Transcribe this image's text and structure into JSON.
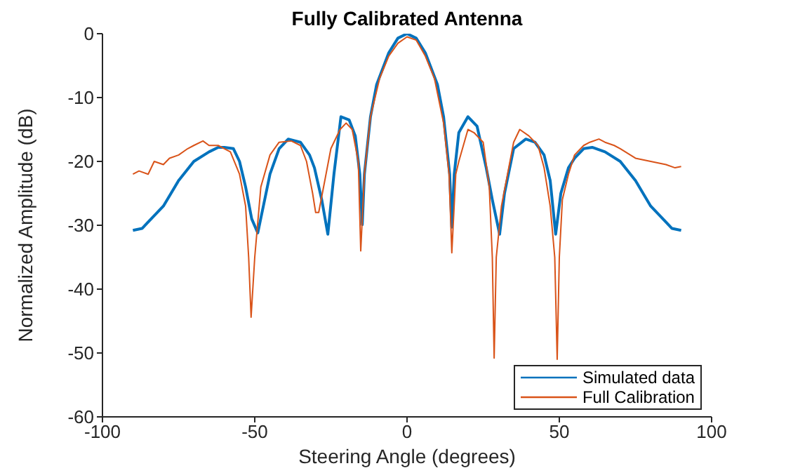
{
  "chart_data": {
    "type": "line",
    "title": "Fully Calibrated Antenna",
    "xlabel": "Steering Angle (degrees)",
    "ylabel": "Normalized Amplitude (dB)",
    "xlim": [
      -100,
      100
    ],
    "xticks": [
      -100,
      -50,
      0,
      50,
      100
    ],
    "ylim": [
      -60,
      0
    ],
    "yticks": [
      -60,
      -50,
      -40,
      -30,
      -20,
      -10,
      0
    ],
    "grid": false,
    "legend": "bottom right",
    "marker": "none",
    "line_style": "solid",
    "series": [
      {
        "name": "Simulated data",
        "color": "#0072bd",
        "x": [
          -90,
          -87,
          -85,
          -80,
          -75,
          -70,
          -65,
          -62,
          -60,
          -57,
          -55,
          -53,
          -51,
          -49,
          -45,
          -42,
          -39,
          -35,
          -32,
          -30.4,
          -28,
          -26,
          -24,
          -21.7,
          -19,
          -17,
          -15.5,
          -14.7,
          -14,
          -12,
          -10,
          -6,
          -3,
          0,
          3,
          6,
          10,
          12,
          14,
          14.7,
          15.5,
          17,
          20,
          23,
          26,
          28,
          30.4,
          32,
          35,
          39,
          42,
          45,
          47,
          48.8,
          50.5,
          53,
          55,
          58,
          60.8,
          65,
          70,
          75,
          80,
          85,
          87,
          90
        ],
        "values": [
          -30.8,
          -30.5,
          -29.5,
          -27,
          -23,
          -20,
          -18.5,
          -17.8,
          -17.8,
          -18,
          -20,
          -24,
          -29,
          -31.2,
          -22,
          -18,
          -16.5,
          -17,
          -19,
          -21,
          -26,
          -31.4,
          -22,
          -13,
          -13.5,
          -16,
          -22,
          -29.9,
          -22,
          -13,
          -8,
          -3,
          -0.7,
          0,
          -0.7,
          -3,
          -8,
          -13,
          -22,
          -30.3,
          -22,
          -15.5,
          -13,
          -14.5,
          -21,
          -26,
          -31.4,
          -25,
          -18,
          -16.5,
          -17,
          -19,
          -23,
          -31.4,
          -25,
          -21,
          -19.5,
          -18,
          -17.8,
          -18.5,
          -20,
          -23,
          -27,
          -29.5,
          -30.5,
          -30.8
        ]
      },
      {
        "name": "Full Calibration",
        "color": "#d95319",
        "x": [
          -90,
          -88,
          -85,
          -83,
          -80,
          -78,
          -75,
          -72,
          -70,
          -67,
          -65,
          -62,
          -60,
          -58,
          -55,
          -53,
          -52,
          -51.2,
          -50,
          -48,
          -45,
          -42,
          -38,
          -35,
          -33,
          -31,
          -30,
          -29,
          -27,
          -25,
          -22,
          -20,
          -18,
          -16,
          -15.2,
          -14,
          -12,
          -9,
          -6,
          -3,
          0,
          3,
          6,
          9,
          12,
          13.8,
          14.7,
          16,
          17,
          20,
          22,
          25,
          27,
          28,
          28.6,
          29.3,
          31,
          33,
          35,
          37,
          40,
          43,
          45,
          47,
          48.5,
          49.3,
          50,
          51,
          53,
          55,
          58,
          60,
          63,
          65,
          68,
          70,
          75,
          80,
          85,
          88,
          90
        ],
        "values": [
          -22,
          -21.5,
          -22,
          -20,
          -20.5,
          -19.5,
          -19,
          -18,
          -17.5,
          -16.8,
          -17.5,
          -17.5,
          -18,
          -18.5,
          -22,
          -27,
          -35,
          -44.4,
          -35,
          -24,
          -19,
          -17,
          -16.8,
          -17.5,
          -20,
          -25,
          -28,
          -28,
          -23,
          -18,
          -15,
          -14,
          -15,
          -20,
          -34,
          -22,
          -13,
          -7,
          -3.5,
          -1.5,
          -0.5,
          -1,
          -3.5,
          -7,
          -14,
          -22,
          -34.3,
          -22,
          -20,
          -15,
          -15.5,
          -17,
          -24,
          -35,
          -50.8,
          -35,
          -27,
          -22,
          -17,
          -15,
          -16,
          -17.5,
          -21,
          -27,
          -35,
          -51,
          -35,
          -26,
          -22,
          -19,
          -17.5,
          -17,
          -16.5,
          -17,
          -17.5,
          -18,
          -19.5,
          -20,
          -20.5,
          -21,
          -20.8
        ]
      }
    ]
  }
}
